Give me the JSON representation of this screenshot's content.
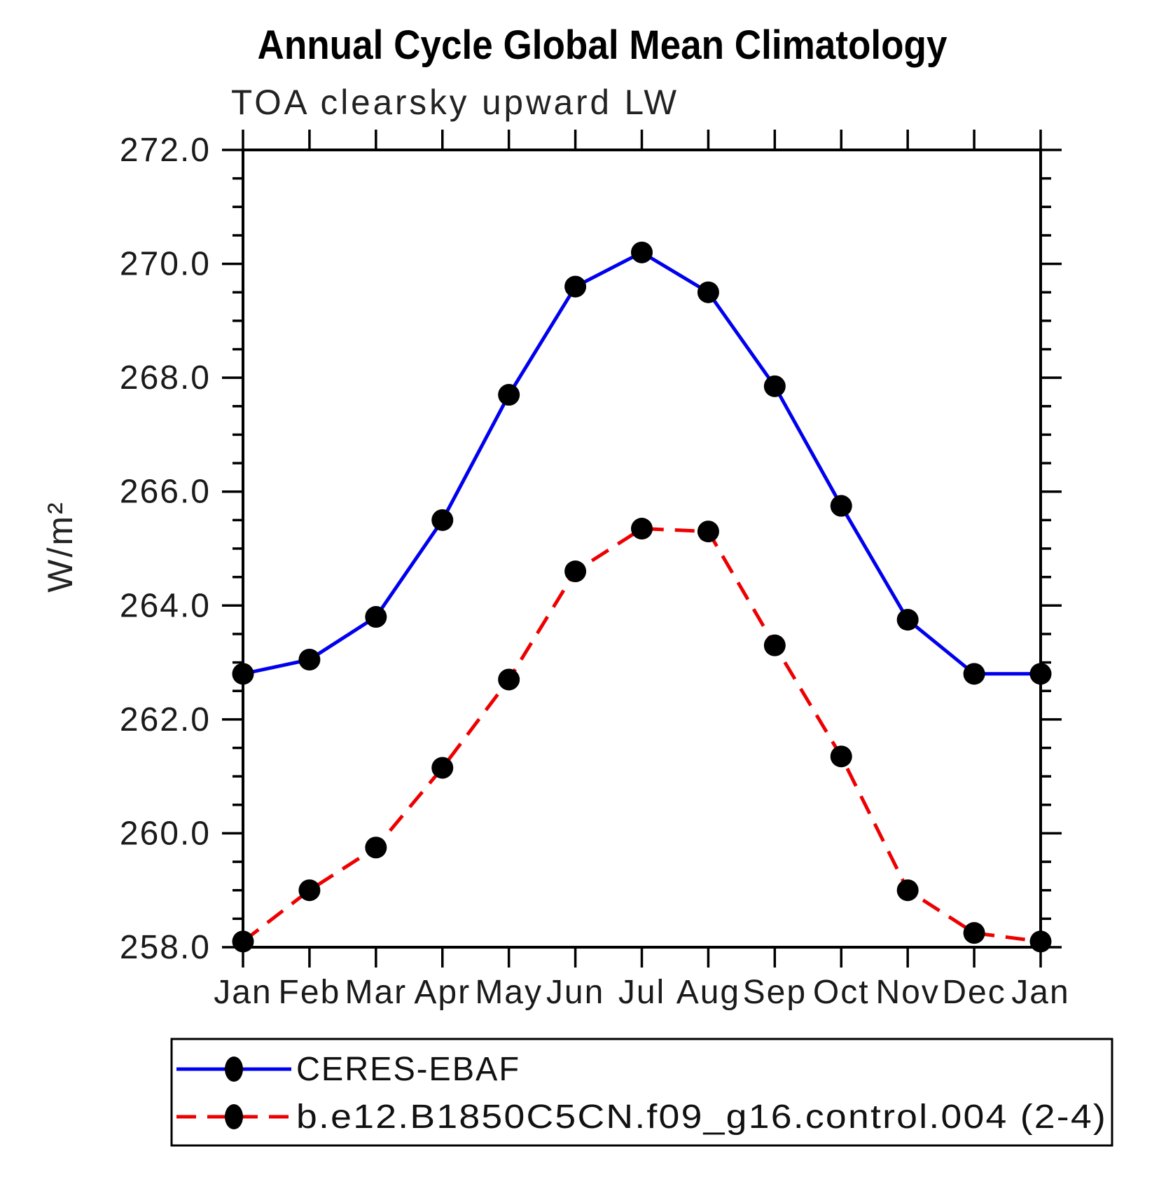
{
  "chart_data": {
    "type": "line",
    "title": "Annual Cycle Global Mean Climatology",
    "subtitle": "TOA clearsky upward LW",
    "ylabel": "W/m²",
    "categories": [
      "Jan",
      "Feb",
      "Mar",
      "Apr",
      "May",
      "Jun",
      "Jul",
      "Aug",
      "Sep",
      "Oct",
      "Nov",
      "Dec",
      "Jan"
    ],
    "series": [
      {
        "name": "CERES-EBAF",
        "color": "#0000ee",
        "line_style": "solid",
        "marker": "filled-circle",
        "marker_color": "#000000",
        "values": [
          262.8,
          263.05,
          263.8,
          265.5,
          267.7,
          269.6,
          270.2,
          269.5,
          267.85,
          265.75,
          263.75,
          262.8,
          262.8
        ]
      },
      {
        "name": "b.e12.B1850C5CN.f09_g16.control.004 (2-4)",
        "color": "#ee0000",
        "line_style": "dashed",
        "marker": "filled-circle",
        "marker_color": "#000000",
        "values": [
          258.1,
          259.0,
          259.75,
          261.15,
          262.7,
          264.6,
          265.35,
          265.3,
          263.3,
          261.35,
          259.0,
          258.25,
          258.1
        ]
      }
    ],
    "ylim": [
      258.0,
      272.0
    ],
    "ytick_major_step": 2.0,
    "ytick_minor_step": 0.5,
    "ytick_labels": [
      "272.0",
      "270.0",
      "268.0",
      "266.0",
      "264.0",
      "262.0",
      "260.0",
      "258.0"
    ],
    "grid": false,
    "legend_position": "bottom",
    "axis_color": "#000000"
  }
}
